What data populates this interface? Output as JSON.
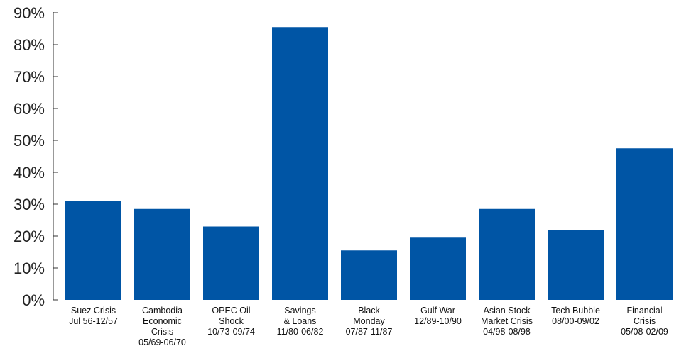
{
  "chart_data": {
    "type": "bar",
    "categories": [
      [
        "Suez Crisis",
        "Jul 56-12/57"
      ],
      [
        "Cambodia",
        "Economic",
        "Crisis",
        "05/69-06/70"
      ],
      [
        "OPEC Oil",
        "Shock",
        "10/73-09/74"
      ],
      [
        "Savings",
        "& Loans",
        "11/80-06/82"
      ],
      [
        "Black",
        "Monday",
        "07/87-11/87"
      ],
      [
        "Gulf War",
        "12/89-10/90"
      ],
      [
        "Asian Stock",
        "Market Crisis",
        "04/98-08/98"
      ],
      [
        "Tech Bubble",
        "08/00-09/02"
      ],
      [
        "Financial",
        "Crisis",
        "05/08-02/09"
      ]
    ],
    "values": [
      31,
      28.5,
      23,
      85.5,
      15.5,
      19.5,
      28.5,
      22,
      47.5
    ],
    "yticks": [
      "0%",
      "10%",
      "20%",
      "30%",
      "40%",
      "50%",
      "60%",
      "70%",
      "80%",
      "90%"
    ],
    "ylim": [
      0,
      90
    ],
    "color": "#0055a5",
    "grid": false,
    "legend": "none"
  }
}
